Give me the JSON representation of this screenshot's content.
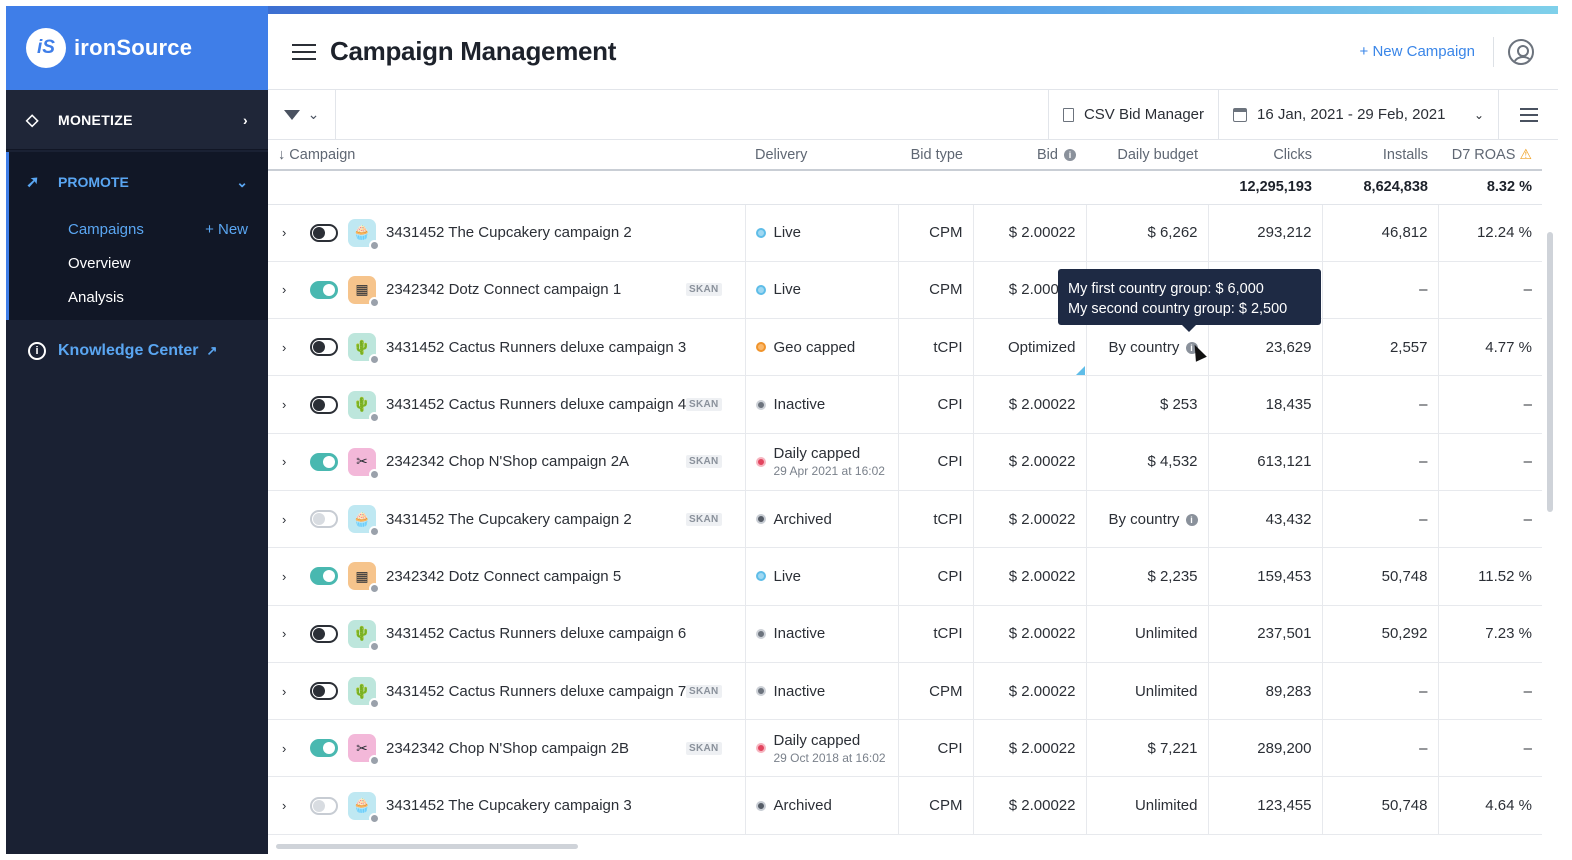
{
  "brand": {
    "name": "ironSource",
    "logo_mark": "iS"
  },
  "sidebar": {
    "monetize_label": "MONETIZE",
    "promote_label": "PROMOTE",
    "campaigns_label": "Campaigns",
    "new_label": "+ New",
    "overview_label": "Overview",
    "analysis_label": "Analysis",
    "knowledge_label": "Knowledge Center"
  },
  "header": {
    "title": "Campaign Management",
    "new_campaign": "+ New Campaign"
  },
  "toolbar": {
    "csv_label": "CSV Bid Manager",
    "date_range": "16 Jan, 2021 - 29 Feb, 2021"
  },
  "columns": {
    "campaign": "Campaign",
    "delivery": "Delivery",
    "bid_type": "Bid type",
    "bid": "Bid",
    "daily_budget": "Daily budget",
    "clicks": "Clicks",
    "installs": "Installs",
    "roas": "D7 ROAS"
  },
  "totals": {
    "clicks": "12,295,193",
    "installs": "8,624,838",
    "roas": "8.32 %"
  },
  "tooltip": {
    "line1": "My first country group: $ 6,000",
    "line2": "My second country group: $ 2,500"
  },
  "rows": [
    {
      "name": "3431452 The Cupcakery campaign 2",
      "skan": "",
      "toggle": "off",
      "icon": "cupcake",
      "status": "Live",
      "status_sub": "",
      "bid_type": "CPM",
      "bid": "$ 2.00022",
      "budget": "$ 6,262",
      "clicks": "293,212",
      "installs": "46,812",
      "roas": "12.24 %"
    },
    {
      "name": "2342342 Dotz Connect campaign 1",
      "skan": "SKAN",
      "toggle": "on",
      "icon": "dotz",
      "status": "Live",
      "status_sub": "",
      "bid_type": "CPM",
      "bid": "$ 2.00022",
      "budget": "",
      "clicks": "",
      "installs": "–",
      "roas": "–"
    },
    {
      "name": "3431452 Cactus Runners deluxe campaign 3",
      "skan": "",
      "toggle": "off",
      "icon": "cactus",
      "status": "Geo capped",
      "status_sub": "",
      "bid_type": "tCPI",
      "bid": "Optimized",
      "budget": "By country",
      "clicks": "23,629",
      "installs": "2,557",
      "roas": "4.77 %"
    },
    {
      "name": "3431452 Cactus Runners deluxe campaign 4",
      "skan": "SKAN",
      "toggle": "off",
      "icon": "cactus",
      "status": "Inactive",
      "status_sub": "",
      "bid_type": "CPI",
      "bid": "$ 2.00022",
      "budget": "$ 253",
      "clicks": "18,435",
      "installs": "–",
      "roas": "–"
    },
    {
      "name": "2342342 Chop N'Shop campaign 2A",
      "skan": "SKAN",
      "toggle": "on",
      "icon": "chop",
      "status": "Daily capped",
      "status_sub": "29 Apr 2021 at 16:02",
      "bid_type": "CPI",
      "bid": "$ 2.00022",
      "budget": "$ 4,532",
      "clicks": "613,121",
      "installs": "–",
      "roas": "–"
    },
    {
      "name": "3431452 The Cupcakery campaign 2",
      "skan": "SKAN",
      "toggle": "archived",
      "icon": "cupcake",
      "status": "Archived",
      "status_sub": "",
      "bid_type": "tCPI",
      "bid": "$ 2.00022",
      "budget": "By country",
      "clicks": "43,432",
      "installs": "–",
      "roas": "–"
    },
    {
      "name": "2342342 Dotz Connect campaign 5",
      "skan": "",
      "toggle": "on",
      "icon": "dotz",
      "status": "Live",
      "status_sub": "",
      "bid_type": "CPI",
      "bid": "$ 2.00022",
      "budget": "$ 2,235",
      "clicks": "159,453",
      "installs": "50,748",
      "roas": "11.52 %"
    },
    {
      "name": "3431452 Cactus Runners deluxe campaign 6",
      "skan": "",
      "toggle": "off",
      "icon": "cactus",
      "status": "Inactive",
      "status_sub": "",
      "bid_type": "tCPI",
      "bid": "$ 2.00022",
      "budget": "Unlimited",
      "clicks": "237,501",
      "installs": "50,292",
      "roas": "7.23 %"
    },
    {
      "name": "3431452 Cactus Runners deluxe campaign 7",
      "skan": "SKAN",
      "toggle": "off",
      "icon": "cactus",
      "status": "Inactive",
      "status_sub": "",
      "bid_type": "CPM",
      "bid": "$ 2.00022",
      "budget": "Unlimited",
      "clicks": "89,283",
      "installs": "–",
      "roas": "–"
    },
    {
      "name": "2342342 Chop N'Shop campaign 2B",
      "skan": "SKAN",
      "toggle": "on",
      "icon": "chop",
      "status": "Daily capped",
      "status_sub": "29 Oct 2018 at 16:02",
      "bid_type": "CPI",
      "bid": "$ 2.00022",
      "budget": "$ 7,221",
      "clicks": "289,200",
      "installs": "–",
      "roas": "–"
    },
    {
      "name": "3431452 The Cupcakery campaign 3",
      "skan": "",
      "toggle": "archived",
      "icon": "cupcake",
      "status": "Archived",
      "status_sub": "",
      "bid_type": "CPM",
      "bid": "$ 2.00022",
      "budget": "Unlimited",
      "clicks": "123,455",
      "installs": "50,748",
      "roas": "4.64 %"
    }
  ]
}
